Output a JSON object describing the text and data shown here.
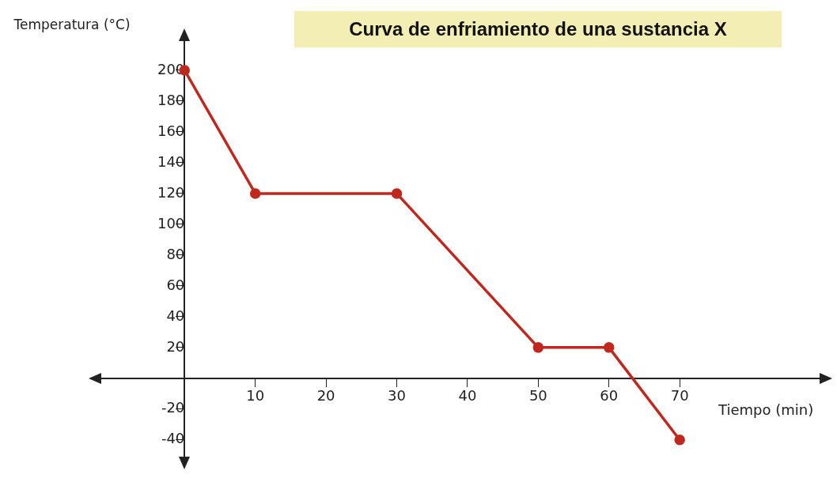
{
  "chart_data": {
    "type": "line",
    "title": "Curva de enfriamiento de una sustancia X",
    "xlabel": "Tiempo (min)",
    "ylabel": "Temperatura (°C)",
    "x": [
      0,
      10,
      30,
      50,
      60,
      70
    ],
    "series": [
      {
        "color": "#c0281e",
        "values": [
          200,
          120,
          120,
          20,
          20,
          -40
        ]
      }
    ],
    "xlim": [
      -12,
      90
    ],
    "ylim": [
      -52,
      220
    ],
    "xticks": [
      10,
      20,
      30,
      40,
      50,
      60,
      70
    ],
    "yticks": [
      -40,
      -20,
      20,
      40,
      60,
      80,
      100,
      120,
      140,
      160,
      180,
      200
    ],
    "grid": false,
    "marker": "circle",
    "line_style": "solid"
  }
}
